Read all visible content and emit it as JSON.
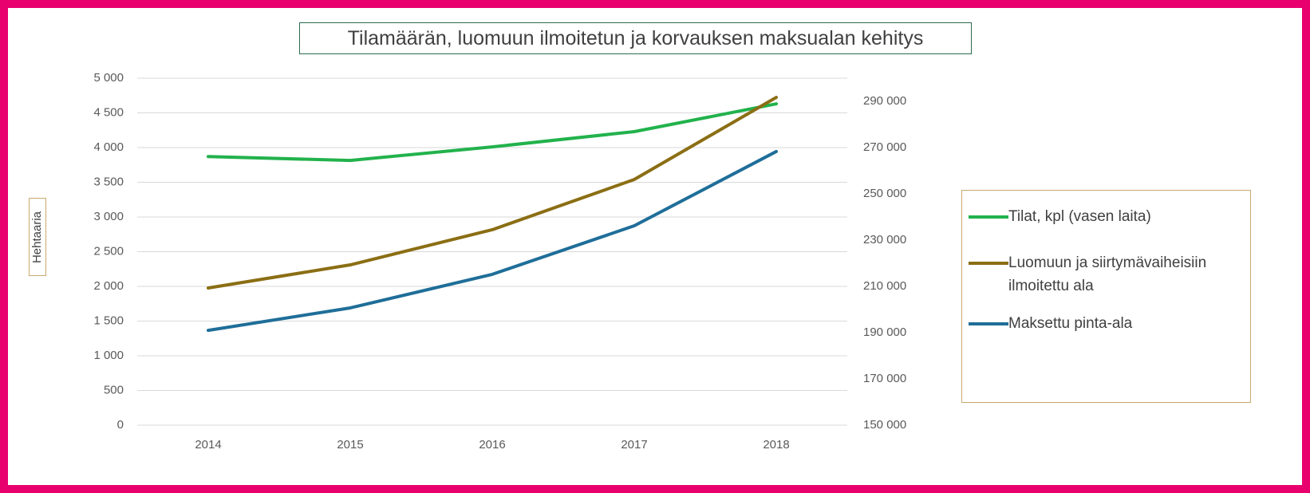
{
  "chart_data": {
    "type": "line",
    "title": "Tilamäärän, luomuun ilmoitetun ja korvauksen maksualan kehitys",
    "y_label": "Hehtaaria",
    "categories": [
      "2014",
      "2015",
      "2016",
      "2017",
      "2018"
    ],
    "series": [
      {
        "name": "Tilat, kpl (vasen laita)",
        "color": "#22b24c",
        "values": [
          3870,
          3815,
          4010,
          4230,
          4630
        ]
      },
      {
        "name": "Luomuun ja siirtymävaiheisiin ilmoitettu ala",
        "color": "#8b6e14",
        "axis": "y2",
        "values": [
          209300,
          219300,
          234500,
          256200,
          291700
        ]
      },
      {
        "name": "Maksettu pinta-ala",
        "color": "#1f6e99",
        "axis": "y2",
        "values": [
          191000,
          200700,
          215200,
          236200,
          268300
        ]
      }
    ],
    "ylim": [
      0,
      5000
    ],
    "yticks": [
      0,
      500,
      {
        "value": 1000,
        "label": "1 000"
      },
      {
        "value": 1500,
        "label": "1 500"
      },
      {
        "value": 2000,
        "label": "2 000"
      },
      {
        "value": 2500,
        "label": "2 500"
      },
      {
        "value": 3000,
        "label": "3 000"
      },
      {
        "value": 3500,
        "label": "3 500"
      },
      {
        "value": 4000,
        "label": "4 000"
      },
      {
        "value": 4500,
        "label": "4 500"
      },
      {
        "value": 5000,
        "label": "5 000"
      }
    ],
    "y2lim": [
      150000,
      300000
    ],
    "y2ticks": [
      {
        "value": 150000,
        "label": "150 000"
      },
      {
        "value": 170000,
        "label": "170 000"
      },
      {
        "value": 190000,
        "label": "190 000"
      },
      {
        "value": 210000,
        "label": "210 000"
      },
      {
        "value": 230000,
        "label": "230 000"
      },
      {
        "value": 250000,
        "label": "250 000"
      },
      {
        "value": 270000,
        "label": "270 000"
      },
      {
        "value": 290000,
        "label": "290 000"
      }
    ],
    "grid": true,
    "legend": "right"
  }
}
